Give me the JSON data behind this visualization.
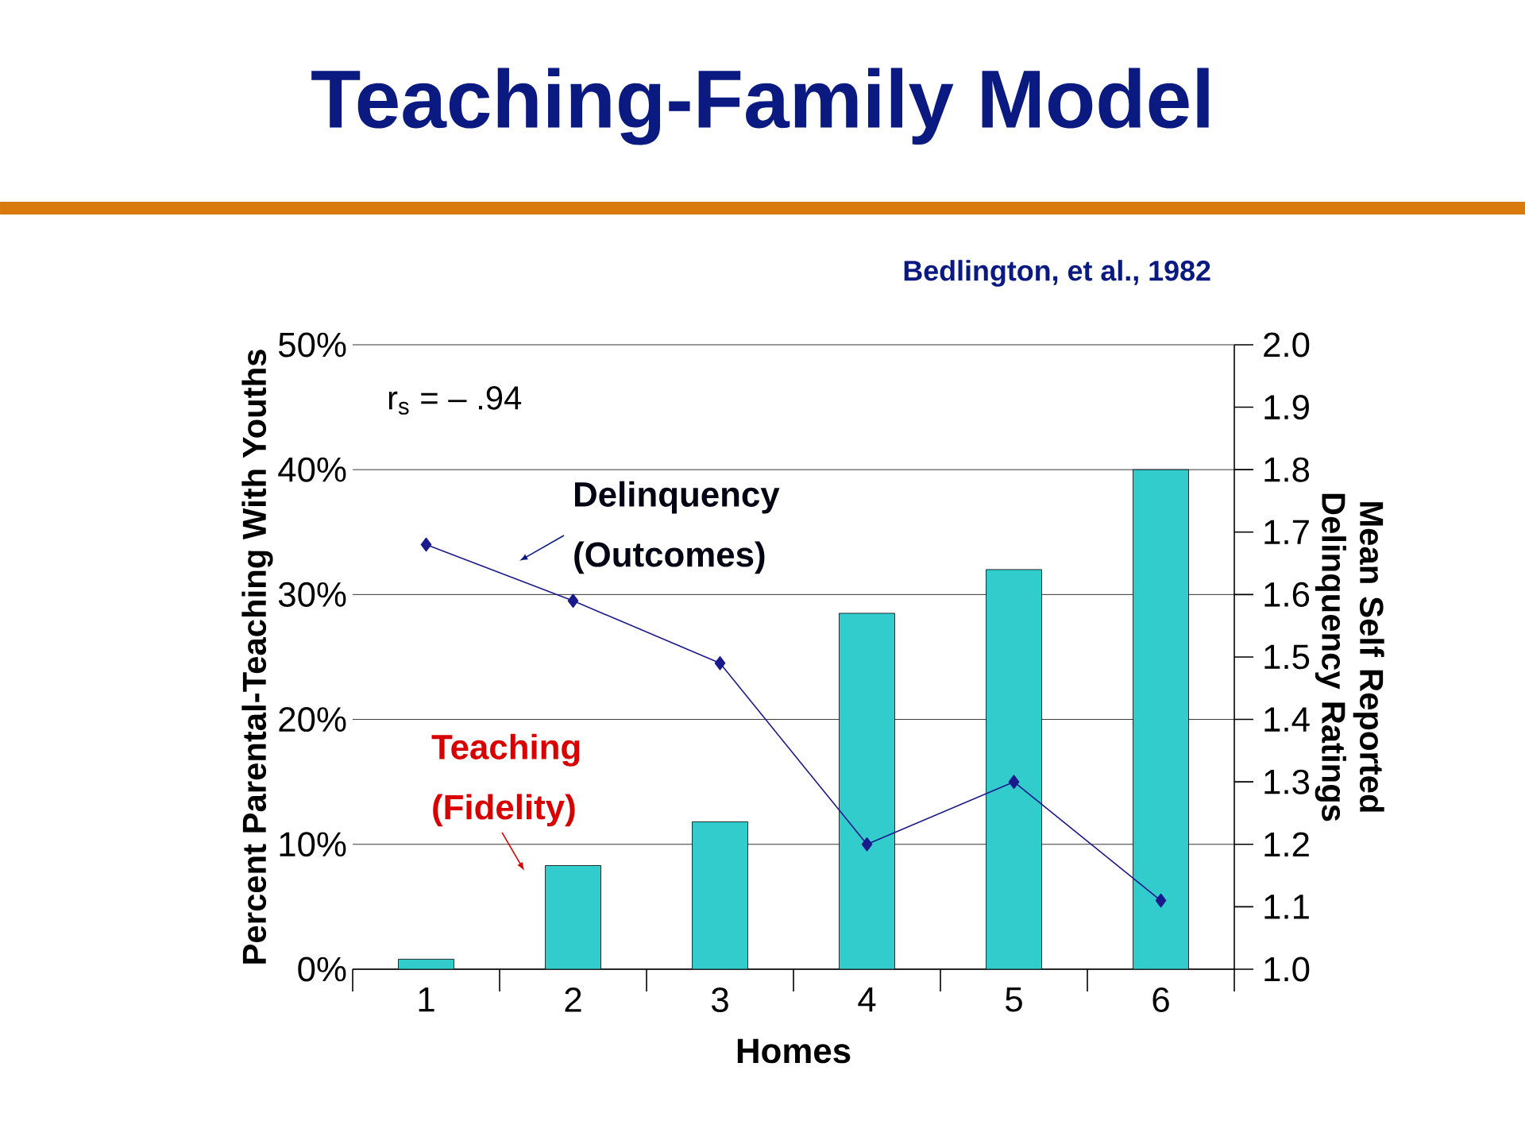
{
  "chart_data": {
    "type": "bar",
    "title": "Teaching-Family Model",
    "xlabel": "Homes",
    "ylabel": "Percent Parental-Teaching With Youths",
    "y2label": "Mean Self Reported Delinquency Ratings",
    "annotations": [
      "Bedlington, et al., 1982",
      "r$_{s}$ = – .94"
    ],
    "categories": [
      "1",
      "2",
      "3",
      "4",
      "5",
      "6"
    ],
    "series": [
      {
        "name": "Teaching (Fidelity)",
        "color": "#33cccc",
        "values": [
          0.8,
          8.3,
          11.8,
          28.5,
          32,
          40
        ]
      },
      {
        "name": "Delinquency (Outcomes)",
        "type": "line",
        "axis": "y2",
        "color": "#1a1a8c",
        "marker": "diamond",
        "values": [
          1.68,
          1.59,
          1.49,
          1.2,
          1.3,
          1.11
        ]
      }
    ],
    "ylim": [
      0,
      50
    ],
    "yticks": [
      {
        "value": 0,
        "label": "0%"
      },
      {
        "value": 10,
        "label": "10%"
      },
      {
        "value": 20,
        "label": "20%"
      },
      {
        "value": 30,
        "label": "30%"
      },
      {
        "value": 40,
        "label": "40%"
      },
      {
        "value": 50,
        "label": "50%"
      }
    ],
    "y2lim": [
      1,
      2
    ],
    "y2ticks": [
      {
        "value": 1,
        "label": "1.0"
      },
      1.1,
      1.2,
      1.3,
      1.4,
      1.5,
      1.6,
      1.7,
      1.8,
      1.9,
      {
        "value": 2,
        "label": "2.0"
      }
    ],
    "grid": "y"
  }
}
